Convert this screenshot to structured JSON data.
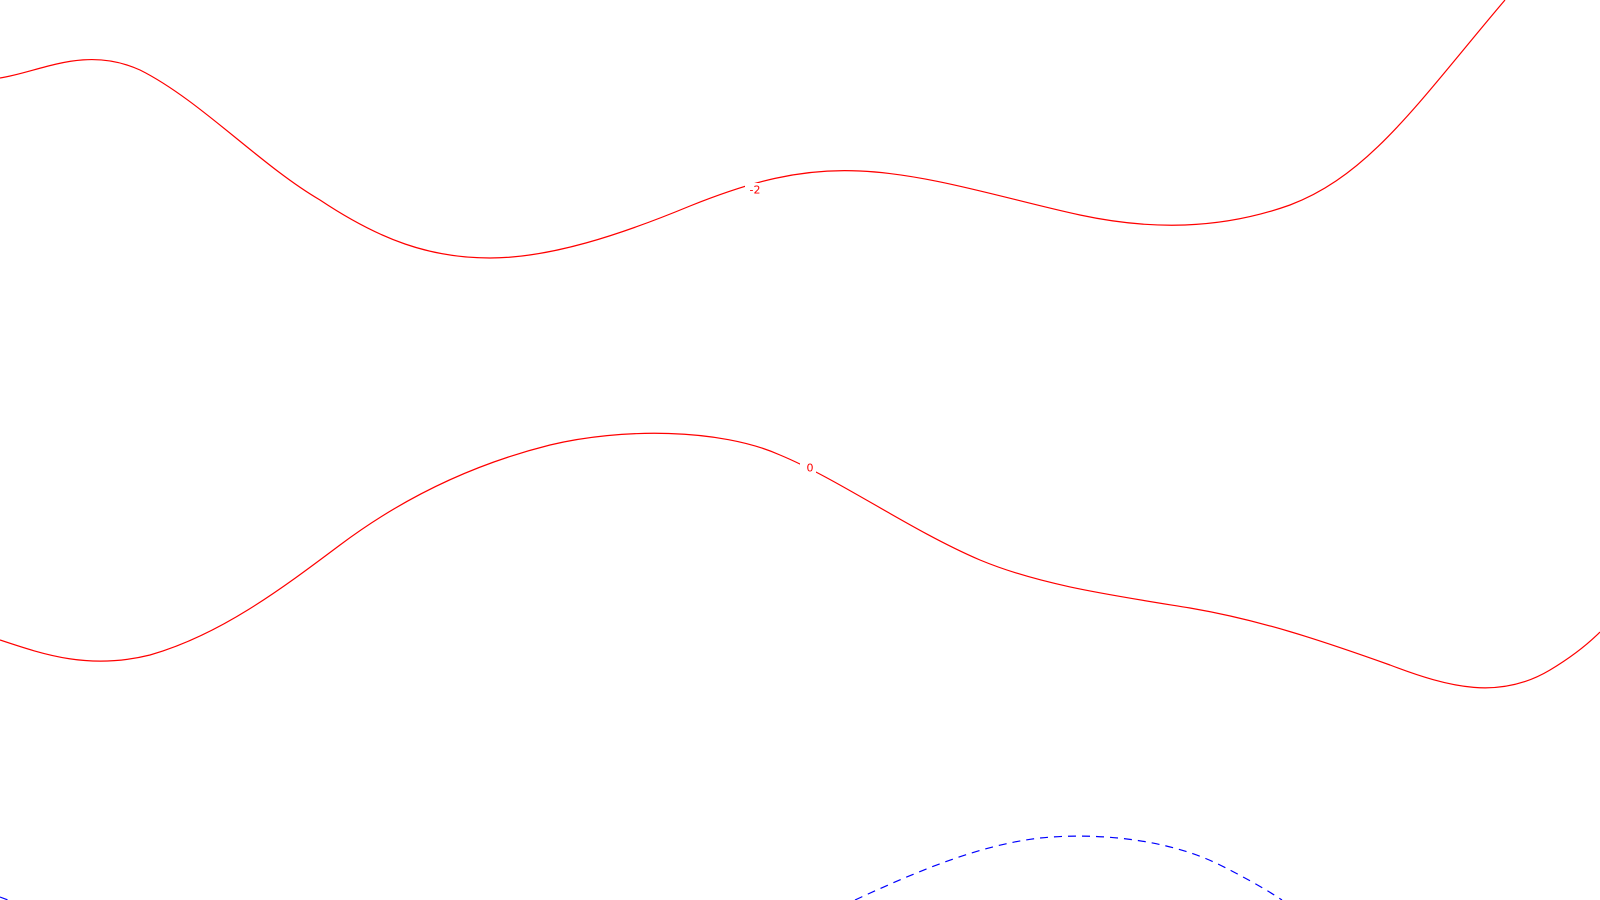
{
  "map": {
    "contours": [
      {
        "id": "contour-minus-2",
        "level_label": "-2",
        "color": "#ff0000",
        "dashed": false
      },
      {
        "id": "contour-zero",
        "level_label": "0",
        "color": "#ff0000",
        "dashed": false
      },
      {
        "id": "contour-positive-dashed",
        "level_label": "",
        "color": "#0000ff",
        "dashed": true
      },
      {
        "id": "contour-negative-edge",
        "level_label": "",
        "color": "#0000ff",
        "dashed": true
      }
    ]
  }
}
